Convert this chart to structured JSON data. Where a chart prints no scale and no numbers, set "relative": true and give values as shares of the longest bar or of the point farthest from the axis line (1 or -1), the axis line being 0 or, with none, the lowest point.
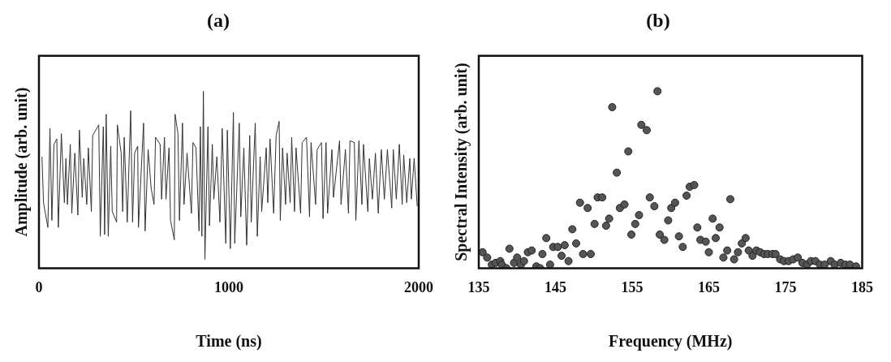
{
  "chart_data": [
    {
      "type": "line",
      "title": "(a)",
      "xlabel": "Time (ns)",
      "ylabel": "Amplitude (arb. unit)",
      "relative": true,
      "color": "#333333",
      "xlim": [
        0,
        2000
      ],
      "xticks": [
        0,
        1000,
        2000
      ],
      "x": [
        16,
        24,
        47,
        58,
        68,
        79,
        94,
        102,
        118,
        134,
        142,
        150,
        165,
        173,
        189,
        205,
        213,
        228,
        236,
        252,
        260,
        276,
        283,
        315,
        323,
        339,
        346,
        354,
        365,
        378,
        386,
        409,
        413,
        433,
        441,
        449,
        465,
        483,
        493,
        504,
        520,
        524,
        551,
        559,
        575,
        591,
        606,
        614,
        638,
        646,
        661,
        669,
        685,
        693,
        713,
        717,
        732,
        740,
        756,
        764,
        780,
        803,
        811,
        827,
        843,
        850,
        858,
        866,
        874,
        890,
        898,
        913,
        921,
        937,
        953,
        965,
        984,
        992,
        1008,
        1024,
        1031,
        1055,
        1063,
        1079,
        1094,
        1110,
        1118,
        1139,
        1150,
        1165,
        1173,
        1197,
        1205,
        1217,
        1236,
        1249,
        1265,
        1271,
        1283,
        1299,
        1307,
        1323,
        1331,
        1346,
        1354,
        1378,
        1386,
        1409,
        1425,
        1433,
        1457,
        1465,
        1488,
        1496,
        1512,
        1520,
        1543,
        1551,
        1583,
        1591,
        1614,
        1630,
        1638,
        1661,
        1669,
        1685,
        1701,
        1709,
        1732,
        1740,
        1756,
        1772,
        1787,
        1803,
        1819,
        1835,
        1858,
        1866,
        1882,
        1898,
        1913,
        1921,
        1937,
        1953,
        1961,
        1976,
        1992
      ],
      "values": [
        0.63,
        0.37,
        0.23,
        0.79,
        0.27,
        0.7,
        0.73,
        0.23,
        0.76,
        0.37,
        0.62,
        0.36,
        0.7,
        0.31,
        0.65,
        0.3,
        0.78,
        0.4,
        0.62,
        0.36,
        0.68,
        0.32,
        0.75,
        0.81,
        0.18,
        0.8,
        0.19,
        0.87,
        0.18,
        0.69,
        0.32,
        0.26,
        0.81,
        0.65,
        0.32,
        0.74,
        0.26,
        0.89,
        0.26,
        0.65,
        0.69,
        0.23,
        0.82,
        0.21,
        0.67,
        0.45,
        0.36,
        0.74,
        0.7,
        0.39,
        0.74,
        0.39,
        0.68,
        0.27,
        0.16,
        0.87,
        0.76,
        0.27,
        0.82,
        0.36,
        0.65,
        0.31,
        0.71,
        0.68,
        0.21,
        0.8,
        0.18,
        1,
        0.05,
        0.8,
        0.24,
        0.7,
        0.39,
        0.63,
        0.26,
        0.79,
        0.14,
        0.78,
        0.11,
        0.88,
        0.14,
        0.82,
        0.29,
        0.68,
        0.13,
        0.75,
        0.26,
        0.82,
        0.18,
        0.63,
        0.32,
        0.68,
        0.37,
        0.73,
        0.31,
        0.75,
        0.83,
        0.27,
        0.68,
        0.36,
        0.65,
        0.37,
        0.74,
        0.32,
        0.68,
        0.31,
        0.71,
        0.74,
        0.29,
        0.71,
        0.36,
        0.67,
        0.71,
        0.28,
        0.71,
        0.31,
        0.67,
        0.4,
        0.72,
        0.36,
        0.67,
        0.31,
        0.72,
        0.71,
        0.27,
        0.72,
        0.36,
        0.7,
        0.32,
        0.62,
        0.39,
        0.65,
        0.31,
        0.67,
        0.39,
        0.67,
        0.34,
        0.67,
        0.39,
        0.7,
        0.36,
        0.64,
        0.37,
        0.62,
        0.39,
        0.62,
        0.35
      ]
    },
    {
      "type": "scatter",
      "title": "(b)",
      "xlabel": "Frequency (MHz)",
      "ylabel": "Spectral Intensity (arb. unit)",
      "relative": true,
      "color": "#555555",
      "marker": "circle",
      "xlim": [
        135,
        185
      ],
      "xticks": [
        135,
        145,
        155,
        165,
        175,
        185
      ],
      "x": [
        135.5,
        136.1,
        136.7,
        137.2,
        137.8,
        138.0,
        138.6,
        139.0,
        139.6,
        140.0,
        140.5,
        140.9,
        141.4,
        141.9,
        142.5,
        143.0,
        143.3,
        143.8,
        144.3,
        144.7,
        145.3,
        145.8,
        146.2,
        146.7,
        147.2,
        147.7,
        148.2,
        148.6,
        149.2,
        149.6,
        150.1,
        150.5,
        151.1,
        151.6,
        152.0,
        152.4,
        153.0,
        153.4,
        154.0,
        154.5,
        154.9,
        155.4,
        155.9,
        156.2,
        156.9,
        157.3,
        157.9,
        158.3,
        158.6,
        159.2,
        159.7,
        160.1,
        160.6,
        161.1,
        161.6,
        162.1,
        162.5,
        163.1,
        163.5,
        163.9,
        164.6,
        165.0,
        165.5,
        165.9,
        166.4,
        166.9,
        167.4,
        167.8,
        168.3,
        168.8,
        169.3,
        169.8,
        170.2,
        170.7,
        171.2,
        171.7,
        172.2,
        172.7,
        173.3,
        173.7,
        174.3,
        174.8,
        175.4,
        176.0,
        176.6,
        177.2,
        177.8,
        178.3,
        178.9,
        179.5,
        180.1,
        180.9,
        181.4,
        182.2,
        182.8,
        183.4,
        184.2
      ],
      "values": [
        0.09,
        0.06,
        0.02,
        0.03,
        0.04,
        0.02,
        0.0,
        0.11,
        0.03,
        0.06,
        0.02,
        0.04,
        0.09,
        0.1,
        0.01,
        0.0,
        0.08,
        0.17,
        0.02,
        0.12,
        0.12,
        0.07,
        0.13,
        0.04,
        0.22,
        0.14,
        0.37,
        0.08,
        0.34,
        0.08,
        0.25,
        0.4,
        0.4,
        0.24,
        0.28,
        0.91,
        0.54,
        0.34,
        0.36,
        0.66,
        0.19,
        0.25,
        0.3,
        0.81,
        0.78,
        0.4,
        0.35,
        1,
        0.19,
        0.16,
        0.27,
        0.34,
        0.37,
        0.18,
        0.12,
        0.41,
        0.46,
        0.47,
        0.23,
        0.16,
        0.15,
        0.09,
        0.28,
        0.17,
        0.23,
        0.06,
        0.1,
        0.39,
        0.05,
        0.09,
        0.14,
        0.17,
        0.1,
        0.07,
        0.1,
        0.09,
        0.08,
        0.08,
        0.08,
        0.08,
        0.05,
        0.04,
        0.04,
        0.05,
        0.06,
        0.03,
        0.02,
        0.04,
        0.04,
        0.02,
        0.02,
        0.04,
        0.02,
        0.03,
        0.02,
        0.02,
        0.01
      ]
    }
  ]
}
